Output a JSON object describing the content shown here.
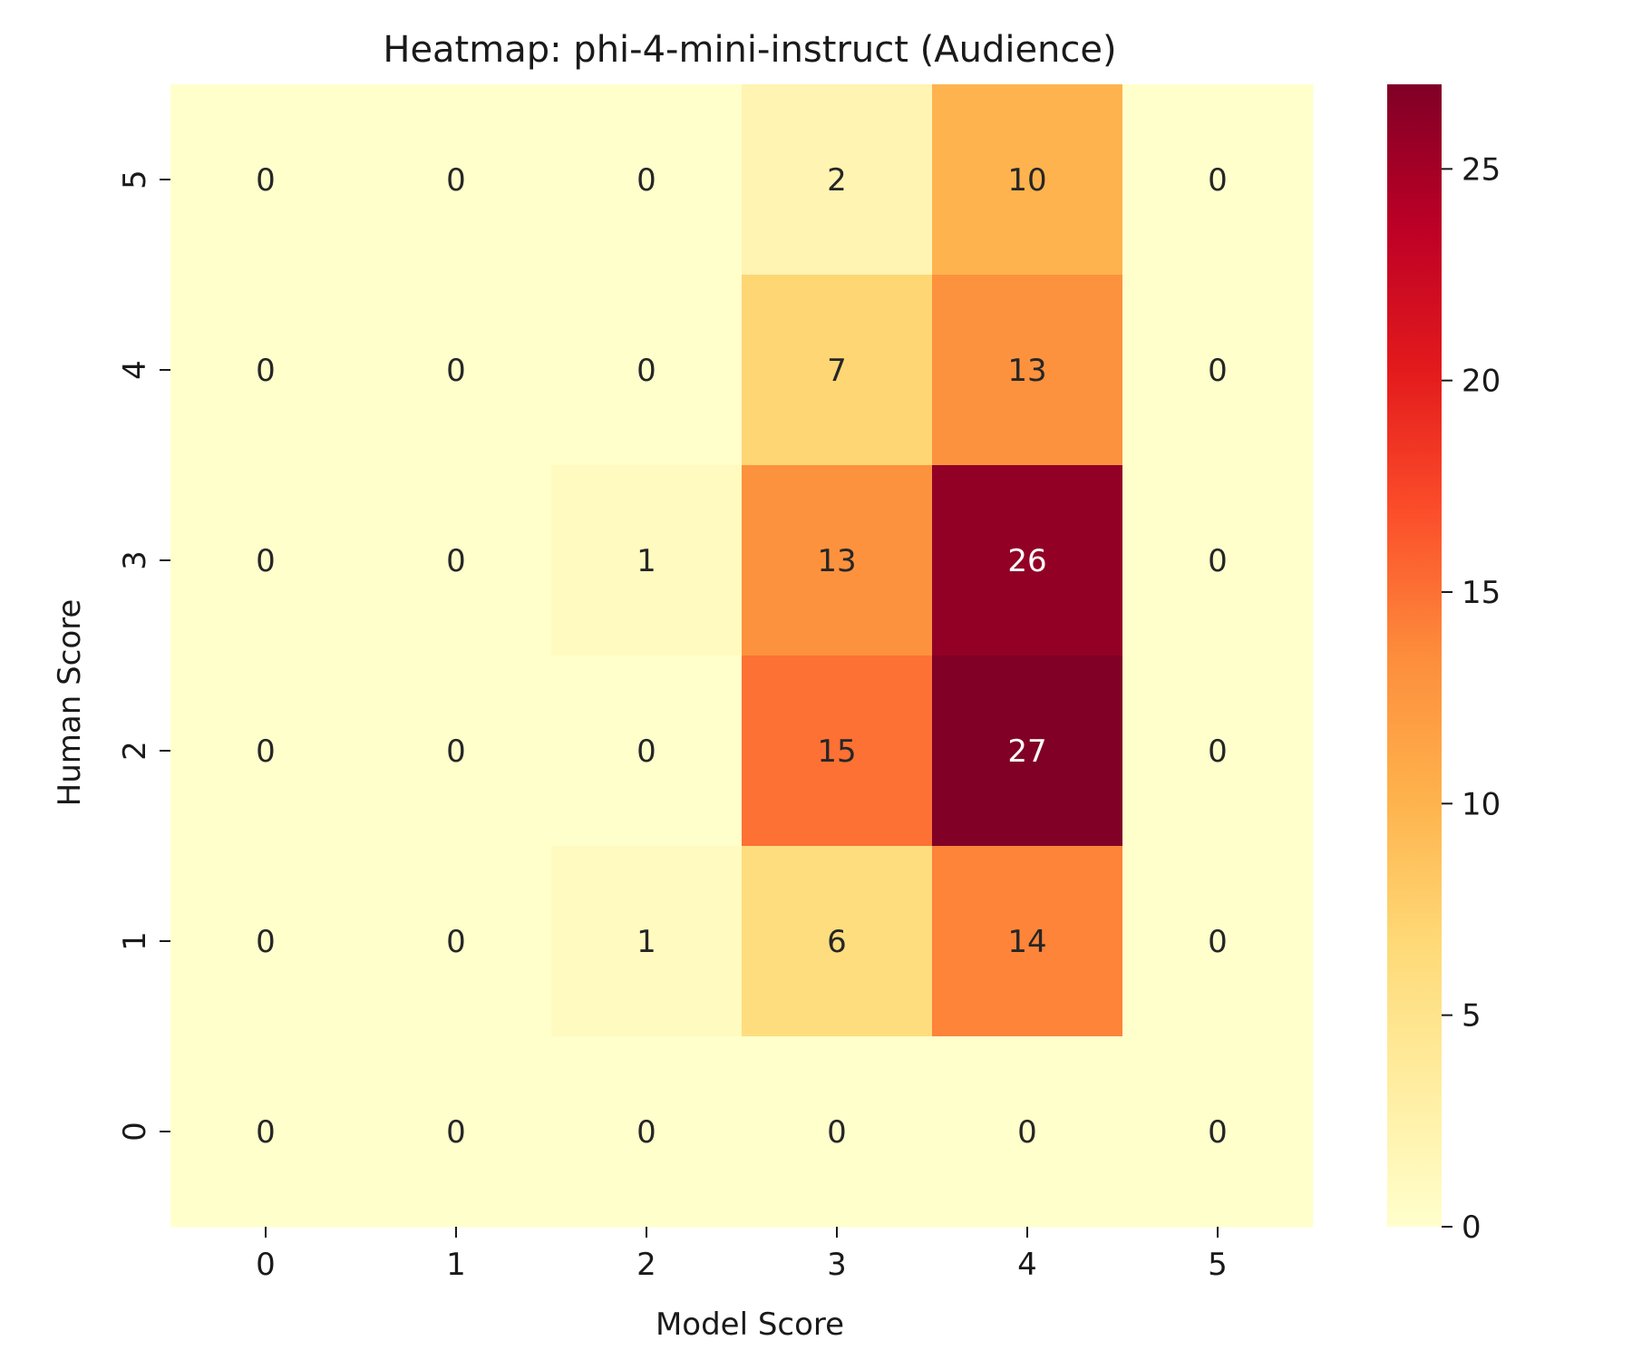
{
  "chart_data": {
    "type": "heatmap",
    "title": "Heatmap: phi-4-mini-instruct (Audience)",
    "xlabel": "Model Score",
    "ylabel": "Human Score",
    "x_categories": [
      "0",
      "1",
      "2",
      "3",
      "4",
      "5"
    ],
    "y_categories": [
      "5",
      "4",
      "3",
      "2",
      "1",
      "0"
    ],
    "values": [
      [
        0,
        0,
        0,
        2,
        10,
        0
      ],
      [
        0,
        0,
        0,
        7,
        13,
        0
      ],
      [
        0,
        0,
        1,
        13,
        26,
        0
      ],
      [
        0,
        0,
        0,
        15,
        27,
        0
      ],
      [
        0,
        0,
        1,
        6,
        14,
        0
      ],
      [
        0,
        0,
        0,
        0,
        0,
        0
      ]
    ],
    "colorbar": {
      "min": 0,
      "max": 27,
      "ticks": [
        0,
        5,
        10,
        15,
        20,
        25
      ],
      "colormap": "YlOrRd",
      "stops": [
        "#ffffcc",
        "#ffeda0",
        "#fed976",
        "#feb24c",
        "#fd8d3c",
        "#fc4e2a",
        "#e31a1c",
        "#bd0026",
        "#800026"
      ]
    },
    "annotations": true,
    "grid": false
  }
}
